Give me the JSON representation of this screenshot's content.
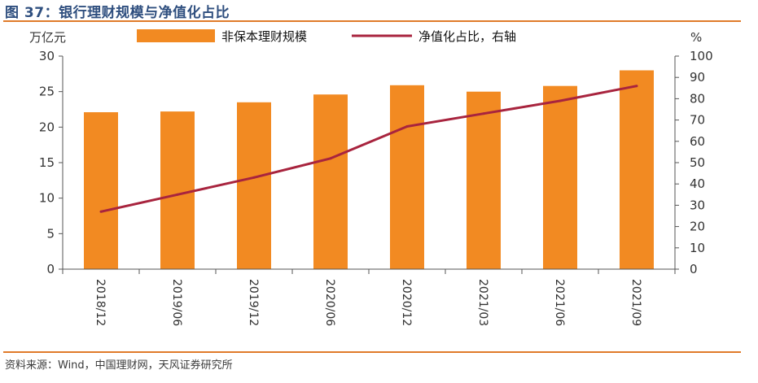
{
  "figure_title": "图 37：银行理财规模与净值化占比",
  "source_note": "资料来源：Wind，中国理财网，天风证券研究所",
  "colors": {
    "bar": "#f28a22",
    "line": "#a8243e",
    "axis": "#555555",
    "accent_rule": "#e07b2a",
    "title": "#2f4f7f"
  },
  "chart_data": {
    "type": "bar+line",
    "categories": [
      "2018/12",
      "2019/06",
      "2019/12",
      "2020/06",
      "2020/12",
      "2021/03",
      "2021/06",
      "2021/09"
    ],
    "series": [
      {
        "name": "非保本理财规模",
        "type": "bar",
        "axis": "left",
        "values": [
          22.1,
          22.2,
          23.5,
          24.6,
          25.9,
          25.0,
          25.8,
          28.0
        ]
      },
      {
        "name": "净值化占比，右轴",
        "type": "line",
        "axis": "right",
        "values": [
          27,
          35,
          43,
          52,
          67,
          73,
          79,
          86
        ]
      }
    ],
    "y_left": {
      "unit": "万亿元",
      "min": 0,
      "max": 30,
      "ticks": [
        0,
        5,
        10,
        15,
        20,
        25,
        30
      ]
    },
    "y_right": {
      "unit": "%",
      "min": 0,
      "max": 100,
      "ticks": [
        0,
        10,
        20,
        30,
        40,
        50,
        60,
        70,
        80,
        90,
        100
      ]
    },
    "legend_position": "top",
    "grid": false
  }
}
